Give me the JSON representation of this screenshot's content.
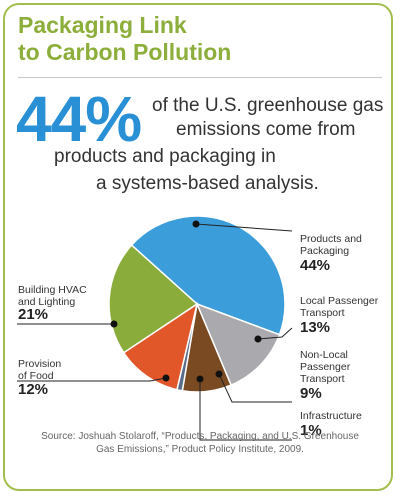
{
  "title_line1": "Packaging Link",
  "title_line2": "to Carbon Pollution",
  "headline": {
    "big": "44%",
    "line1": "of the U.S. greenhouse gas",
    "line2": "emissions come from",
    "line3": "products and packaging in",
    "line4": "a systems-based analysis."
  },
  "labels": {
    "products_1": "Products and",
    "products_2": "Packaging",
    "local_1": "Local Passenger",
    "local_2": "Transport",
    "nonlocal_1": "Non-Local",
    "nonlocal_2": "Passenger",
    "nonlocal_3": "Transport",
    "infra_1": "Infrastructure",
    "hvac_1": "Building HVAC",
    "hvac_2": "and Lighting",
    "food_1": "Provision",
    "food_2": "of Food"
  },
  "source_line1": "Source: Joshuah Stolaroff, “Products, Packaging, and U.S. Greenhouse",
  "source_line2": "Gas Emissions,” Product Policy Institute, 2009.",
  "colors": {
    "border": "#a3be4f",
    "title": "#8cae3a",
    "accent_blue": "#2a90d6"
  },
  "chart_data": {
    "type": "pie",
    "title": "",
    "slices": [
      {
        "label": "Products and Packaging",
        "value": 44,
        "display": "44%",
        "color": "#3c9ddb"
      },
      {
        "label": "Local Passenger Transport",
        "value": 13,
        "display": "13%",
        "color": "#a9a9ae"
      },
      {
        "label": "Non-Local Passenger Transport",
        "value": 9,
        "display": "9%",
        "color": "#7a4a23"
      },
      {
        "label": "Infrastructure",
        "value": 1,
        "display": "1%",
        "color": "#5a6c8a"
      },
      {
        "label": "Provision of Food",
        "value": 12,
        "display": "12%",
        "color": "#e2572a"
      },
      {
        "label": "Building HVAC and Lighting",
        "value": 21,
        "display": "21%",
        "color": "#8aac3b"
      }
    ]
  }
}
